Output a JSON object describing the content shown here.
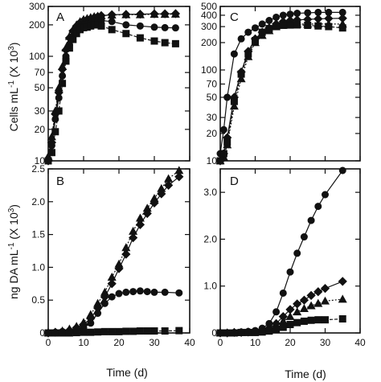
{
  "chart_data": [
    {
      "panel": "A",
      "type": "line",
      "yscale": "log",
      "xlim": [
        0,
        40
      ],
      "ylim": [
        10,
        300
      ],
      "x_ticks": [
        "0",
        "10",
        "20",
        "30",
        "40"
      ],
      "y_ticks": [
        {
          "value": 10,
          "label": "10"
        },
        {
          "value": 20,
          "label": "20"
        },
        {
          "value": 30,
          "label": "30"
        },
        {
          "value": 50,
          "label": "50"
        },
        {
          "value": 70,
          "label": "70"
        },
        {
          "value": 100,
          "label": "100"
        },
        {
          "value": 200,
          "label": "200"
        },
        {
          "value": 300,
          "label": "300"
        }
      ],
      "series": [
        {
          "marker": "diamond",
          "dash": "0",
          "x": [
            0,
            1,
            2,
            3,
            4,
            5,
            6,
            7,
            8,
            9,
            10,
            11,
            12,
            13,
            14,
            15,
            18,
            22,
            26,
            30,
            33,
            36
          ],
          "y": [
            10,
            15,
            28,
            45,
            75,
            115,
            150,
            175,
            195,
            210,
            220,
            225,
            230,
            235,
            240,
            245,
            250,
            252,
            253,
            255,
            255,
            256
          ]
        },
        {
          "marker": "triangle",
          "dash": "2,2",
          "x": [
            0,
            1,
            2,
            3,
            4,
            5,
            6,
            7,
            8,
            9,
            10,
            11,
            12,
            13,
            14,
            15,
            18,
            22,
            26,
            30,
            33,
            36
          ],
          "y": [
            11,
            17,
            30,
            50,
            80,
            120,
            155,
            180,
            200,
            215,
            225,
            230,
            235,
            240,
            242,
            245,
            248,
            250,
            250,
            252,
            252,
            253
          ]
        },
        {
          "marker": "circle",
          "dash": "0",
          "x": [
            0,
            1,
            2,
            3,
            4,
            5,
            6,
            7,
            8,
            9,
            10,
            11,
            12,
            13,
            14,
            15,
            18,
            22,
            26,
            30,
            33,
            36
          ],
          "y": [
            10,
            14,
            25,
            40,
            65,
            100,
            130,
            155,
            175,
            190,
            200,
            205,
            210,
            215,
            218,
            220,
            215,
            200,
            195,
            190,
            188,
            187
          ]
        },
        {
          "marker": "square",
          "dash": "4,2",
          "x": [
            0,
            1,
            2,
            3,
            4,
            5,
            6,
            7,
            8,
            9,
            10,
            11,
            12,
            13,
            14,
            15,
            18,
            22,
            26,
            30,
            33,
            36
          ],
          "y": [
            10,
            12,
            19,
            30,
            55,
            90,
            120,
            145,
            165,
            180,
            188,
            190,
            195,
            200,
            200,
            195,
            180,
            165,
            150,
            140,
            135,
            132
          ]
        }
      ]
    },
    {
      "panel": "B",
      "type": "line",
      "yscale": "linear",
      "xlim": [
        0,
        40
      ],
      "ylim": [
        0,
        2.5
      ],
      "x_ticks": [
        "0",
        "10",
        "20",
        "30",
        "40"
      ],
      "y_ticks": [
        {
          "value": 0,
          "label": "0"
        },
        {
          "value": 0.5,
          "label": "0.5"
        },
        {
          "value": 1.0,
          "label": "1.0"
        },
        {
          "value": 1.5,
          "label": "1.5"
        },
        {
          "value": 2.0,
          "label": "2.0"
        },
        {
          "value": 2.5,
          "label": "2.5"
        }
      ],
      "series": [
        {
          "marker": "triangle",
          "dash": "2,2",
          "x": [
            0,
            2,
            4,
            6,
            8,
            10,
            12,
            14,
            16,
            18,
            20,
            22,
            24,
            26,
            28,
            30,
            32,
            34,
            37
          ],
          "y": [
            0,
            0.01,
            0.03,
            0.06,
            0.1,
            0.16,
            0.28,
            0.45,
            0.62,
            0.85,
            1.05,
            1.3,
            1.55,
            1.75,
            1.9,
            2.05,
            2.2,
            2.35,
            2.48
          ]
        },
        {
          "marker": "diamond",
          "dash": "0",
          "x": [
            0,
            2,
            4,
            6,
            8,
            10,
            12,
            14,
            16,
            18,
            20,
            22,
            24,
            26,
            28,
            30,
            32,
            34,
            37
          ],
          "y": [
            0,
            0.01,
            0.02,
            0.04,
            0.08,
            0.13,
            0.22,
            0.38,
            0.55,
            0.75,
            0.98,
            1.2,
            1.45,
            1.65,
            1.82,
            1.98,
            2.12,
            2.25,
            2.38
          ]
        },
        {
          "marker": "circle",
          "dash": "0",
          "x": [
            0,
            2,
            4,
            6,
            8,
            10,
            12,
            14,
            16,
            18,
            20,
            22,
            24,
            26,
            28,
            30,
            33,
            37
          ],
          "y": [
            0,
            0.01,
            0.02,
            0.03,
            0.05,
            0.08,
            0.15,
            0.3,
            0.45,
            0.55,
            0.6,
            0.62,
            0.63,
            0.64,
            0.63,
            0.62,
            0.62,
            0.61
          ]
        },
        {
          "marker": "square",
          "dash": "4,2",
          "x": [
            0,
            2,
            4,
            6,
            8,
            10,
            12,
            14,
            16,
            18,
            20,
            22,
            24,
            26,
            28,
            30,
            33,
            37
          ],
          "y": [
            0,
            0,
            0,
            0,
            0.005,
            0.01,
            0.01,
            0.015,
            0.02,
            0.02,
            0.02,
            0.025,
            0.025,
            0.03,
            0.03,
            0.03,
            0.03,
            0.035
          ]
        }
      ]
    },
    {
      "panel": "C",
      "type": "line",
      "yscale": "log",
      "xlim": [
        0,
        40
      ],
      "ylim": [
        10,
        500
      ],
      "x_ticks": [
        "0",
        "10",
        "20",
        "30",
        "40"
      ],
      "y_ticks": [
        {
          "value": 10,
          "label": "10"
        },
        {
          "value": 20,
          "label": "20"
        },
        {
          "value": 30,
          "label": "30"
        },
        {
          "value": 50,
          "label": "50"
        },
        {
          "value": 70,
          "label": "70"
        },
        {
          "value": 100,
          "label": "100"
        },
        {
          "value": 200,
          "label": "200"
        },
        {
          "value": 300,
          "label": "300"
        },
        {
          "value": 400,
          "label": "400"
        },
        {
          "value": 500,
          "label": "500"
        }
      ],
      "series": [
        {
          "marker": "circle",
          "dash": "0",
          "x": [
            0,
            1,
            2,
            4,
            6,
            8,
            10,
            12,
            14,
            16,
            18,
            20,
            22,
            25,
            28,
            31,
            35
          ],
          "y": [
            12,
            22,
            50,
            150,
            220,
            260,
            290,
            320,
            350,
            380,
            400,
            410,
            420,
            425,
            430,
            430,
            430
          ]
        },
        {
          "marker": "diamond",
          "dash": "0",
          "x": [
            0,
            1,
            2,
            4,
            6,
            8,
            10,
            12,
            14,
            16,
            18,
            20,
            22,
            25,
            28,
            31,
            35
          ],
          "y": [
            10,
            12,
            18,
            50,
            95,
            160,
            220,
            260,
            290,
            320,
            340,
            350,
            355,
            360,
            365,
            368,
            370
          ]
        },
        {
          "marker": "triangle",
          "dash": "2,2",
          "x": [
            0,
            1,
            2,
            4,
            6,
            8,
            10,
            12,
            14,
            16,
            18,
            20,
            22,
            25,
            28,
            31,
            35
          ],
          "y": [
            10,
            11,
            15,
            40,
            80,
            140,
            200,
            240,
            270,
            300,
            310,
            315,
            320,
            320,
            320,
            320,
            320
          ]
        },
        {
          "marker": "square",
          "dash": "4,2",
          "x": [
            0,
            1,
            2,
            4,
            6,
            8,
            10,
            12,
            14,
            16,
            18,
            20,
            22,
            25,
            28,
            31,
            35
          ],
          "y": [
            10,
            12,
            16,
            45,
            90,
            150,
            210,
            260,
            285,
            300,
            310,
            312,
            313,
            310,
            305,
            300,
            290
          ]
        }
      ]
    },
    {
      "panel": "D",
      "type": "line",
      "yscale": "linear",
      "xlim": [
        0,
        40
      ],
      "ylim": [
        0,
        3.5
      ],
      "x_ticks": [
        "0",
        "10",
        "20",
        "30",
        "40"
      ],
      "y_ticks": [
        {
          "value": 0,
          "label": "0"
        },
        {
          "value": 1.0,
          "label": "1.0"
        },
        {
          "value": 2.0,
          "label": "2.0"
        },
        {
          "value": 3.0,
          "label": "3.0"
        }
      ],
      "series": [
        {
          "marker": "circle",
          "dash": "0",
          "x": [
            0,
            2,
            4,
            6,
            8,
            10,
            12,
            14,
            16,
            18,
            20,
            22,
            24,
            26,
            28,
            30,
            35
          ],
          "y": [
            0,
            0,
            0.01,
            0.02,
            0.03,
            0.05,
            0.1,
            0.2,
            0.45,
            0.85,
            1.3,
            1.7,
            2.05,
            2.4,
            2.7,
            2.95,
            3.72
          ]
        },
        {
          "marker": "diamond",
          "dash": "0",
          "x": [
            0,
            2,
            4,
            6,
            8,
            10,
            12,
            14,
            16,
            18,
            20,
            22,
            24,
            26,
            28,
            30,
            35
          ],
          "y": [
            0,
            0,
            0.01,
            0.01,
            0.02,
            0.03,
            0.05,
            0.1,
            0.2,
            0.35,
            0.5,
            0.62,
            0.7,
            0.8,
            0.88,
            0.95,
            1.1
          ]
        },
        {
          "marker": "triangle",
          "dash": "2,2",
          "x": [
            0,
            2,
            4,
            6,
            8,
            10,
            12,
            14,
            16,
            18,
            20,
            22,
            24,
            26,
            28,
            30,
            35
          ],
          "y": [
            0,
            0,
            0.01,
            0.01,
            0.02,
            0.02,
            0.04,
            0.08,
            0.15,
            0.25,
            0.35,
            0.45,
            0.52,
            0.58,
            0.63,
            0.68,
            0.72
          ]
        },
        {
          "marker": "square",
          "dash": "4,2",
          "x": [
            0,
            2,
            4,
            6,
            8,
            10,
            12,
            14,
            16,
            18,
            20,
            22,
            24,
            26,
            28,
            30,
            35
          ],
          "y": [
            0,
            0,
            0,
            0.01,
            0.01,
            0.01,
            0.02,
            0.04,
            0.08,
            0.12,
            0.18,
            0.22,
            0.25,
            0.27,
            0.28,
            0.28,
            0.3
          ]
        }
      ]
    }
  ],
  "labels": {
    "y_top": "Cells mL",
    "y_top_sup": "-1",
    "y_top_unit": " (X 10",
    "y_top_unit_sup": "3",
    "y_top_close": ")",
    "y_bottom": "ng DA mL",
    "y_bottom_sup": "-1",
    "y_bottom_unit": " (X 10",
    "y_bottom_unit_sup": "3",
    "y_bottom_close": ")",
    "x_left": "Time (d)",
    "x_right": "Time (d)"
  }
}
